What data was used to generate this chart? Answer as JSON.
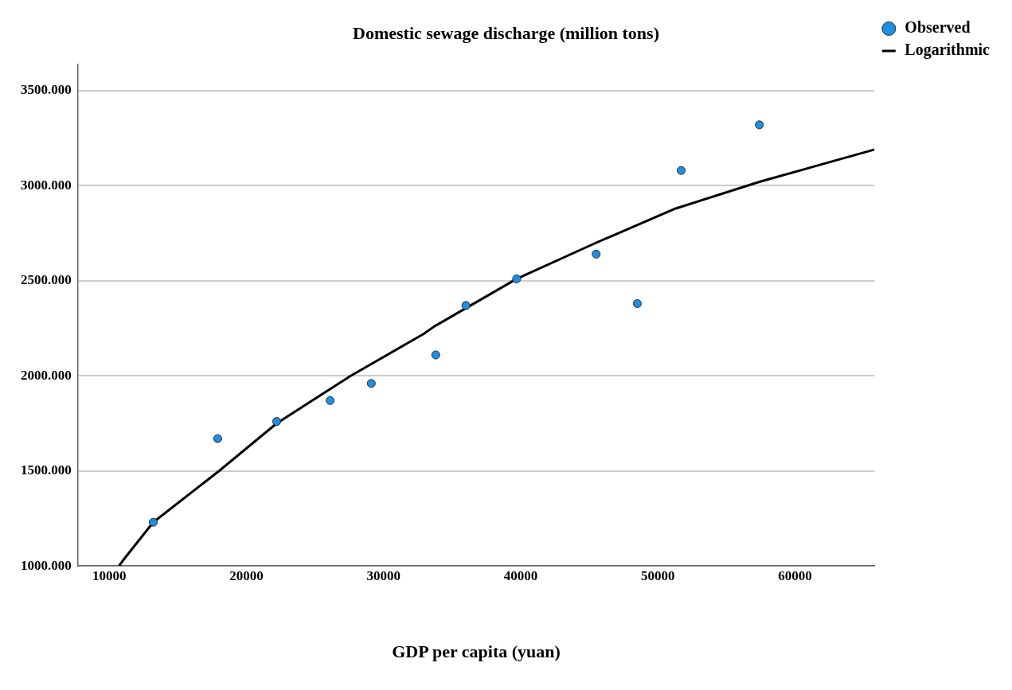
{
  "chart_data": {
    "type": "scatter",
    "ylabel": "Domestic sewage discharge (million tons)",
    "xlabel": "GDP per capita (yuan)",
    "xlim": [
      7700,
      65800
    ],
    "xticks": [
      10000,
      20000,
      30000,
      40000,
      50000,
      60000
    ],
    "ylim": [
      1000,
      3640
    ],
    "yticks": [
      {
        "value": 1000,
        "label": "1000.000"
      },
      {
        "value": 1500,
        "label": "1500.000"
      },
      {
        "value": 2000,
        "label": "2000.000"
      },
      {
        "value": 2500,
        "label": "2500.000"
      },
      {
        "value": 3000,
        "label": "3000.000"
      },
      {
        "value": 3500,
        "label": "3500.000"
      }
    ],
    "grid": "y",
    "legend": "top right",
    "series": [
      {
        "name": "Observed",
        "type": "scatter",
        "marker": "circle",
        "color": "#1f8fe0",
        "x": [
          13200,
          17900,
          22200,
          26100,
          29100,
          33800,
          36000,
          39700,
          45500,
          48500,
          51700,
          57400
        ],
        "values": [
          1230,
          1670,
          1760,
          1870,
          1960,
          2110,
          2370,
          2510,
          2640,
          2380,
          3080,
          3320
        ]
      },
      {
        "name": "Logarithmic",
        "type": "line",
        "marker": "none",
        "line_style": "solid",
        "color": "#000000",
        "x": [
          10700,
          11000,
          13200,
          18000,
          22200,
          27600,
          32900,
          33700,
          39700,
          45500,
          51300,
          57400,
          65800
        ],
        "values": [
          1000,
          1030,
          1230,
          1500,
          1750,
          2000,
          2220,
          2260,
          2510,
          2700,
          2880,
          3020,
          3190
        ]
      }
    ]
  }
}
